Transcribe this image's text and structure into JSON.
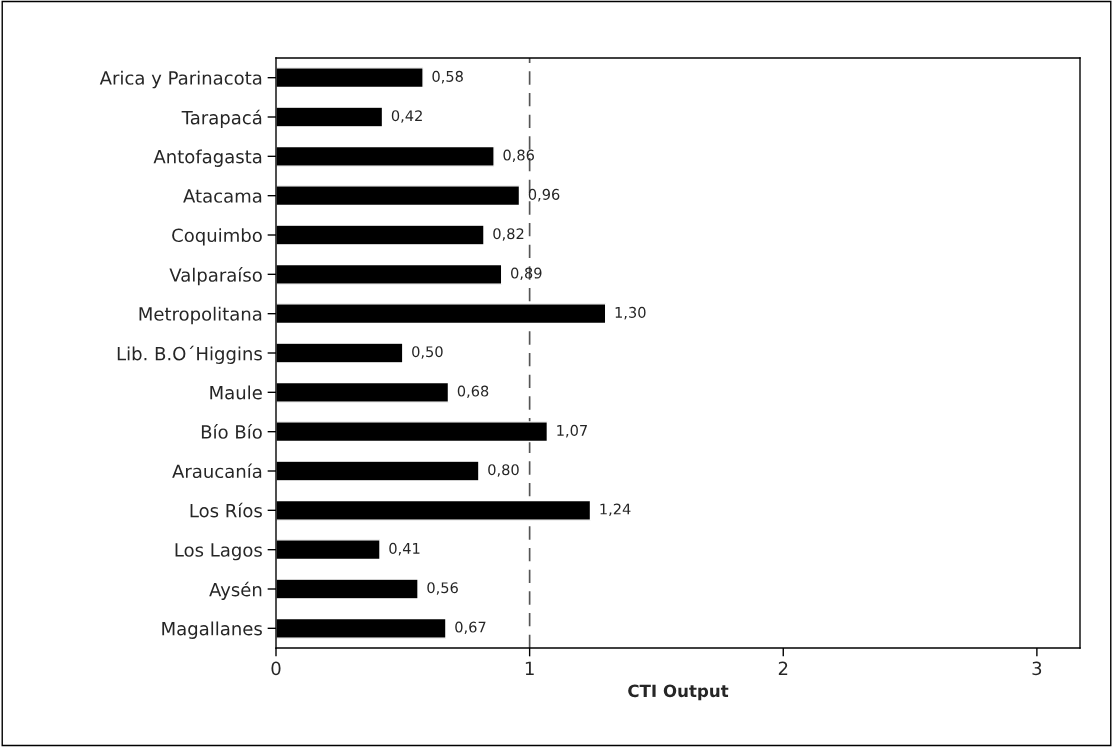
{
  "chart_data": {
    "type": "bar",
    "orientation": "horizontal",
    "xlabel": "CTI Output",
    "categories": [
      "Arica y Parinacota",
      "Tarapacá",
      "Antofagasta",
      "Atacama",
      "Coquimbo",
      "Valparaíso",
      "Metropolitana",
      "Lib. B.O´Higgins",
      "Maule",
      "Bío Bío",
      "Araucanía",
      "Los Ríos",
      "Los Lagos",
      "Aysén",
      "Magallanes"
    ],
    "values": [
      0.58,
      0.42,
      0.86,
      0.96,
      0.82,
      0.89,
      1.3,
      0.5,
      0.68,
      1.07,
      0.8,
      1.24,
      0.41,
      0.56,
      0.67
    ],
    "value_labels": [
      "0,58",
      "0,42",
      "0,86",
      "0,96",
      "0,82",
      "0,89",
      "1,30",
      "0,50",
      "0,68",
      "1,07",
      "0,80",
      "1,24",
      "0,41",
      "0,56",
      "0,67"
    ],
    "color": "#000000",
    "xlim": [
      0,
      3.17
    ],
    "xticks": [
      0,
      1,
      2,
      3
    ],
    "ref_lines": [
      {
        "axis": "x",
        "value": 1,
        "color": "#555555",
        "line_style": "dashed"
      }
    ],
    "grid": false,
    "legend": false
  }
}
